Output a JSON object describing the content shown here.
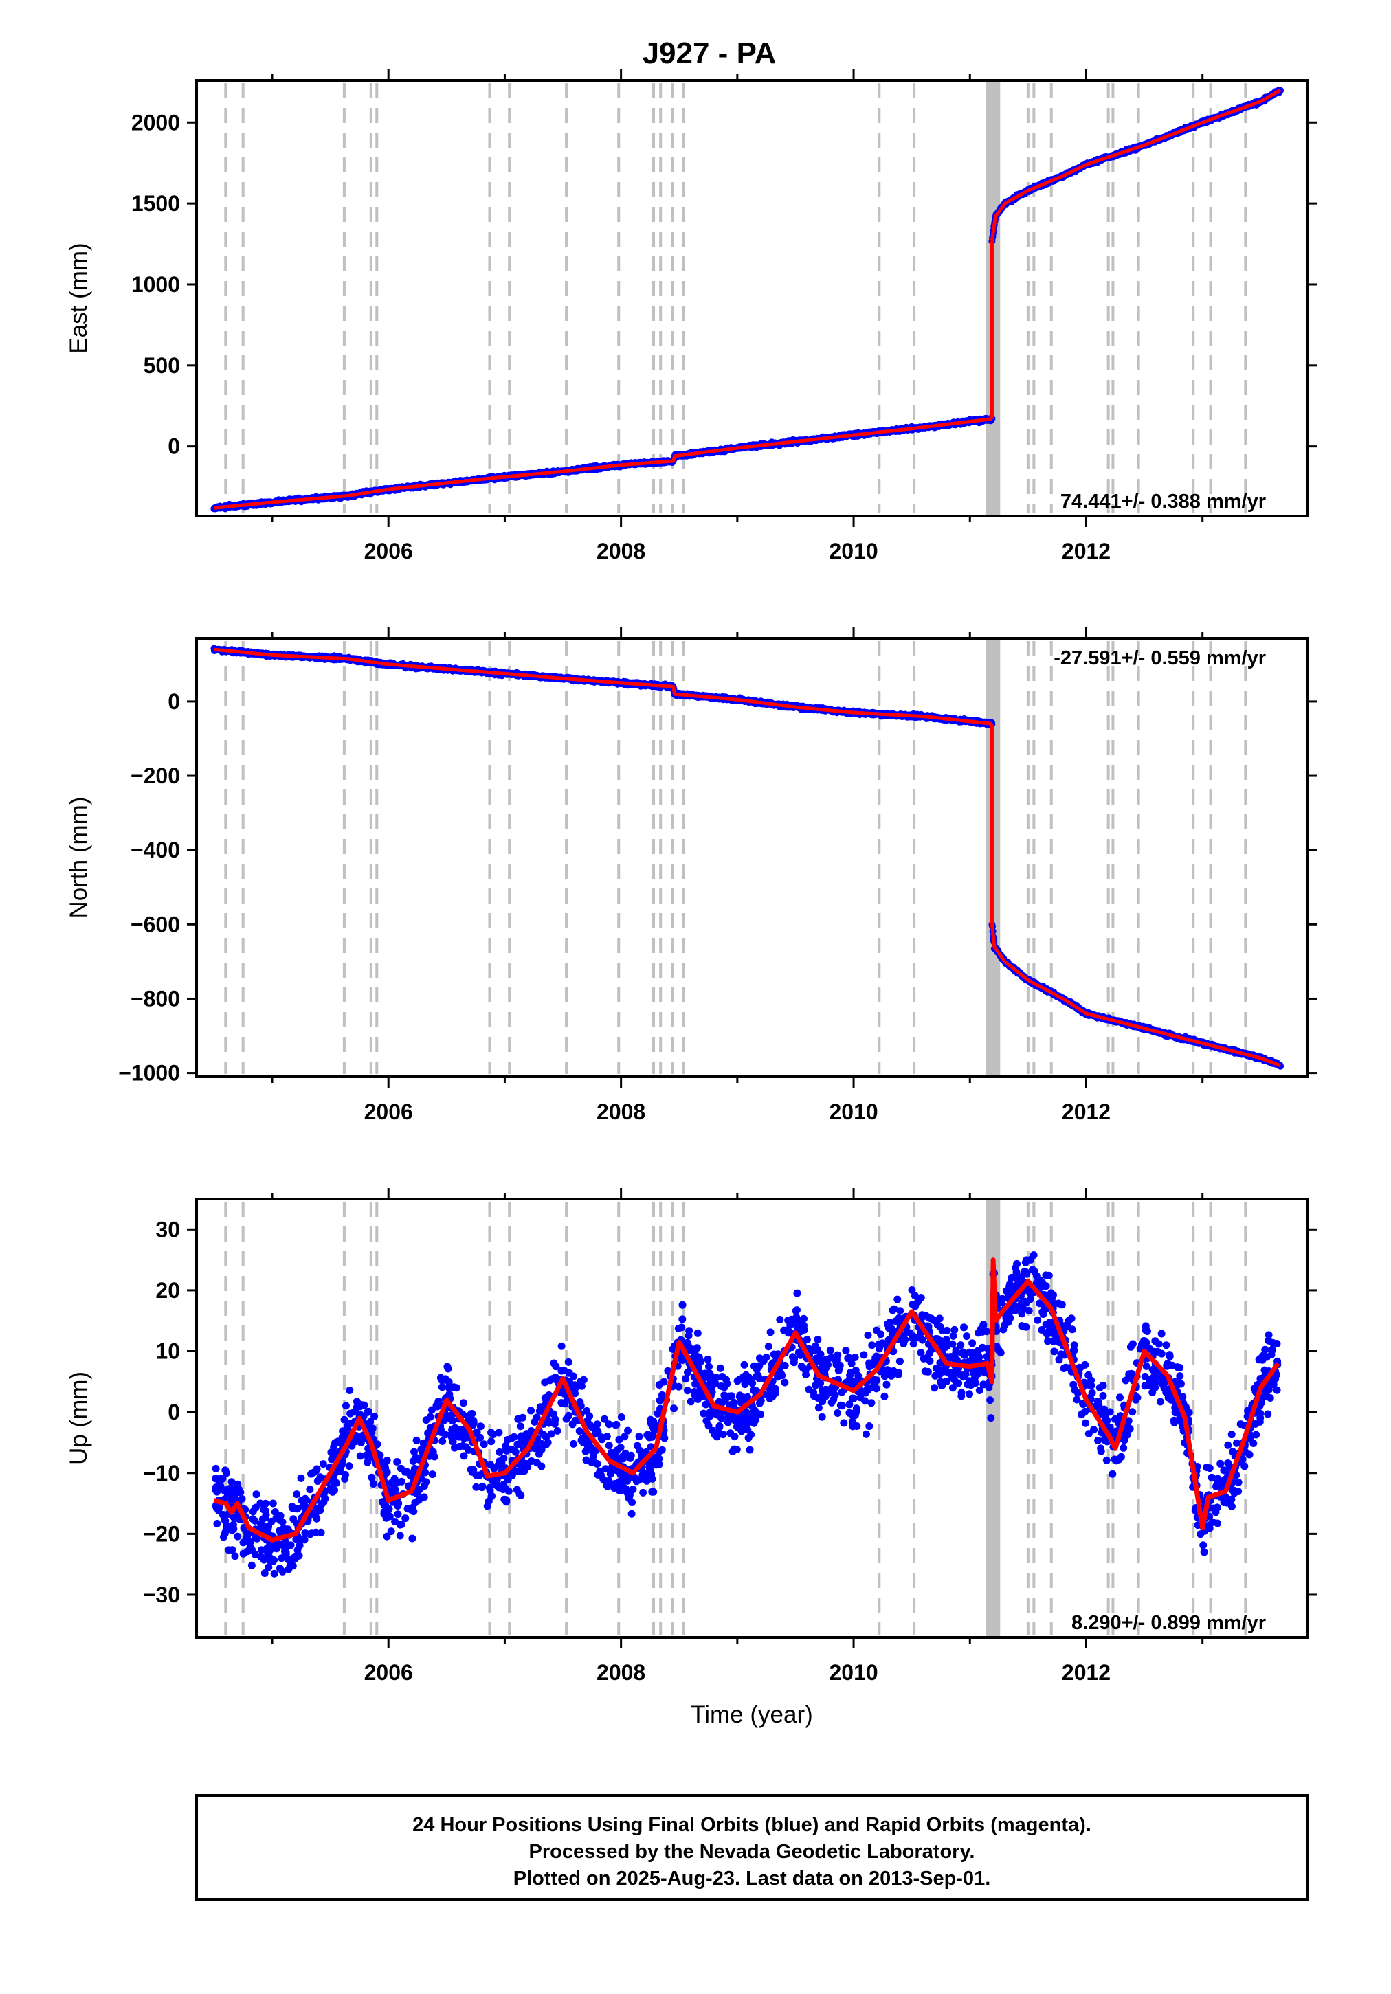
{
  "title": "J927 - PA",
  "caption": {
    "lines": [
      "24 Hour Positions Using Final Orbits (blue) and Rapid Orbits (magenta).",
      "Processed by the Nevada Geodetic Laboratory.",
      "Plotted on 2025-Aug-23. Last data on 2013-Sep-01."
    ]
  },
  "colors": {
    "data_points": "#0000ff",
    "model_line": "#ff0000",
    "event_lines": "#c0c0c0",
    "frame": "#000000"
  },
  "chart_data": [
    {
      "type": "scatter",
      "ylabel": "East (mm)",
      "xlabel": "",
      "xlim": [
        2004.35,
        2013.9
      ],
      "ylim": [
        -430,
        2260
      ],
      "yticks": [
        0,
        500,
        1000,
        1500,
        2000
      ],
      "xticks": [
        2006,
        2008,
        2010,
        2012
      ],
      "rate_text": "74.441+/- 0.388 mm/yr",
      "rate_position": "bottom-right",
      "series": [
        {
          "key": "data",
          "x": [
            2004.5,
            2005.0,
            2005.65,
            2006.0,
            2006.9,
            2007.5,
            2008.0,
            2008.45,
            2008.46,
            2009.0,
            2010.0,
            2010.5,
            2011.19
          ],
          "y": [
            -380,
            -345,
            -305,
            -265,
            -195,
            -155,
            -115,
            -90,
            -60,
            -10,
            70,
            110,
            170
          ]
        },
        {
          "key": "postseismic",
          "x": [
            2011.19,
            2011.22,
            2011.3,
            2011.5,
            2011.8,
            2012.0,
            2012.5,
            2013.0,
            2013.5,
            2013.67
          ],
          "y": [
            1270,
            1420,
            1500,
            1580,
            1670,
            1740,
            1860,
            2000,
            2130,
            2200
          ]
        }
      ]
    },
    {
      "type": "scatter",
      "ylabel": "North (mm)",
      "xlabel": "",
      "xlim": [
        2004.35,
        2013.9
      ],
      "ylim": [
        -1010,
        170
      ],
      "yticks": [
        -1000,
        -800,
        -600,
        -400,
        -200,
        0
      ],
      "xticks": [
        2006,
        2008,
        2010,
        2012
      ],
      "rate_text": "-27.591+/- 0.559 mm/yr",
      "rate_position": "top-right",
      "series": [
        {
          "key": "data",
          "x": [
            2004.5,
            2005.0,
            2005.65,
            2006.0,
            2007.0,
            2007.5,
            2008.0,
            2008.45,
            2008.46,
            2009.0,
            2009.5,
            2010.0,
            2010.6,
            2011.19
          ],
          "y": [
            140,
            125,
            115,
            100,
            75,
            62,
            50,
            40,
            20,
            5,
            -15,
            -30,
            -40,
            -60
          ]
        },
        {
          "key": "postseismic",
          "x": [
            2011.19,
            2011.21,
            2011.3,
            2011.5,
            2011.8,
            2012.0,
            2012.5,
            2013.0,
            2013.5,
            2013.67
          ],
          "y": [
            -600,
            -660,
            -700,
            -750,
            -800,
            -840,
            -880,
            -920,
            -960,
            -980
          ]
        }
      ]
    },
    {
      "type": "scatter",
      "ylabel": "Up (mm)",
      "xlabel": "Time (year)",
      "xlim": [
        2004.35,
        2013.9
      ],
      "ylim": [
        -37,
        35
      ],
      "yticks": [
        -30,
        -20,
        -10,
        0,
        10,
        20,
        30
      ],
      "xticks": [
        2006,
        2008,
        2010,
        2012
      ],
      "rate_text": "8.290+/- 0.899 mm/yr",
      "rate_position": "bottom-right",
      "model_line": {
        "x": [
          2004.5,
          2004.6,
          2004.65,
          2004.7,
          2004.8,
          2005.0,
          2005.2,
          2005.5,
          2005.65,
          2005.75,
          2005.85,
          2006.0,
          2006.2,
          2006.5,
          2006.7,
          2006.85,
          2007.0,
          2007.2,
          2007.5,
          2007.7,
          2007.9,
          2008.1,
          2008.3,
          2008.5,
          2008.6,
          2008.8,
          2009.0,
          2009.2,
          2009.5,
          2009.7,
          2010.0,
          2010.2,
          2010.5,
          2010.8,
          2011.0,
          2011.15,
          2011.19,
          2011.2,
          2011.22,
          2011.3,
          2011.5,
          2011.7,
          2011.9,
          2012.0,
          2012.2,
          2012.25,
          2012.5,
          2012.7,
          2012.85,
          2012.9,
          2013.0,
          2013.05,
          2013.2,
          2013.35,
          2013.5,
          2013.65
        ],
        "y": [
          -14.5,
          -15,
          -16.5,
          -15,
          -19,
          -21,
          -20,
          -10,
          -5,
          -1,
          -5,
          -14.5,
          -13,
          2,
          -3,
          -10.5,
          -10,
          -6,
          5.5,
          -3,
          -8,
          -10,
          -6,
          11.5,
          8,
          1,
          0,
          3,
          13,
          6,
          3.5,
          7,
          16.5,
          8,
          7.5,
          8,
          5,
          25,
          15,
          17,
          21.5,
          17,
          7,
          2,
          -4,
          -6,
          10,
          6,
          -1,
          -7,
          -19,
          -14,
          -13,
          -5,
          4,
          8
        ]
      },
      "scatter_spread": 5.5
    }
  ],
  "event_years": [
    2004.6,
    2004.75,
    2005.62,
    2005.85,
    2005.9,
    2006.87,
    2007.04,
    2007.53,
    2007.98,
    2008.28,
    2008.34,
    2008.44,
    2008.54,
    2010.22,
    2010.52,
    2011.5,
    2011.55,
    2011.7,
    2012.19,
    2012.23,
    2012.45,
    2012.92,
    2013.07,
    2013.37
  ],
  "event_band": [
    2011.14,
    2011.26
  ]
}
